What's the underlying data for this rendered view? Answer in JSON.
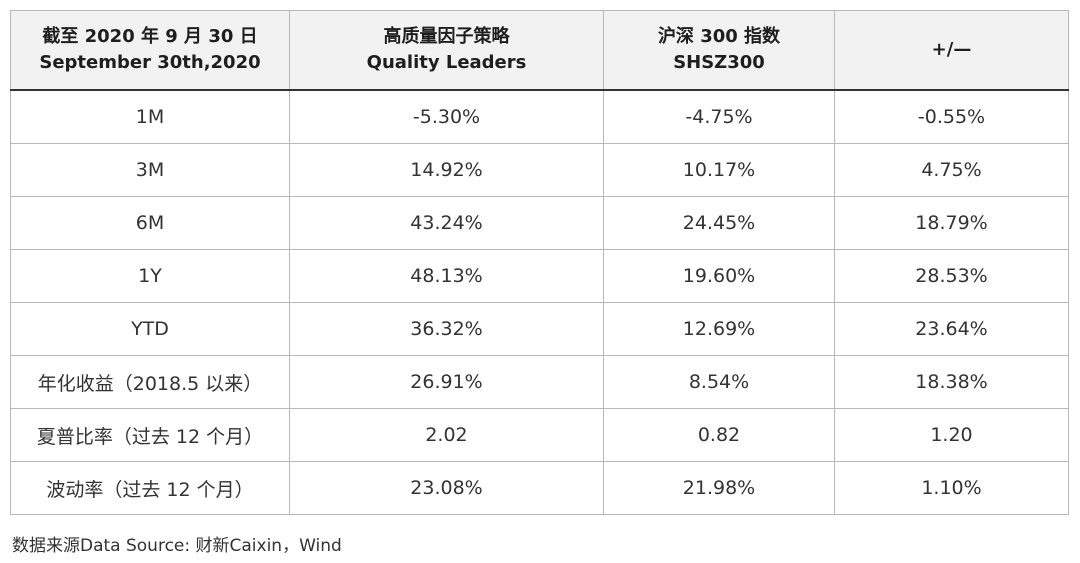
{
  "table": {
    "headers": [
      {
        "line1": "截至 2020 年 9 月 30 日",
        "line2": "September 30th,2020"
      },
      {
        "line1": "高质量因子策略",
        "line2": "Quality Leaders"
      },
      {
        "line1": "沪深 300 指数",
        "line2": "SHSZ300"
      },
      {
        "line1": "+/—",
        "line2": ""
      }
    ],
    "rows": [
      {
        "period": "1M",
        "quality": "-5.30%",
        "shsz300": "-4.75%",
        "diff": "-0.55%"
      },
      {
        "period": "3M",
        "quality": "14.92%",
        "shsz300": "10.17%",
        "diff": "4.75%"
      },
      {
        "period": "6M",
        "quality": "43.24%",
        "shsz300": "24.45%",
        "diff": "18.79%"
      },
      {
        "period": "1Y",
        "quality": "48.13%",
        "shsz300": "19.60%",
        "diff": "28.53%"
      },
      {
        "period": "YTD",
        "quality": "36.32%",
        "shsz300": "12.69%",
        "diff": "23.64%"
      },
      {
        "period": "年化收益（2018.5 以来）",
        "quality": "26.91%",
        "shsz300": "8.54%",
        "diff": "18.38%"
      },
      {
        "period": "夏普比率（过去 12 个月）",
        "quality": "2.02",
        "shsz300": "0.82",
        "diff": "1.20"
      },
      {
        "period": "波动率（过去 12 个月）",
        "quality": "23.08%",
        "shsz300": "21.98%",
        "diff": "1.10%"
      }
    ]
  },
  "source": "数据来源Data Source: 财新Caixin，Wind"
}
